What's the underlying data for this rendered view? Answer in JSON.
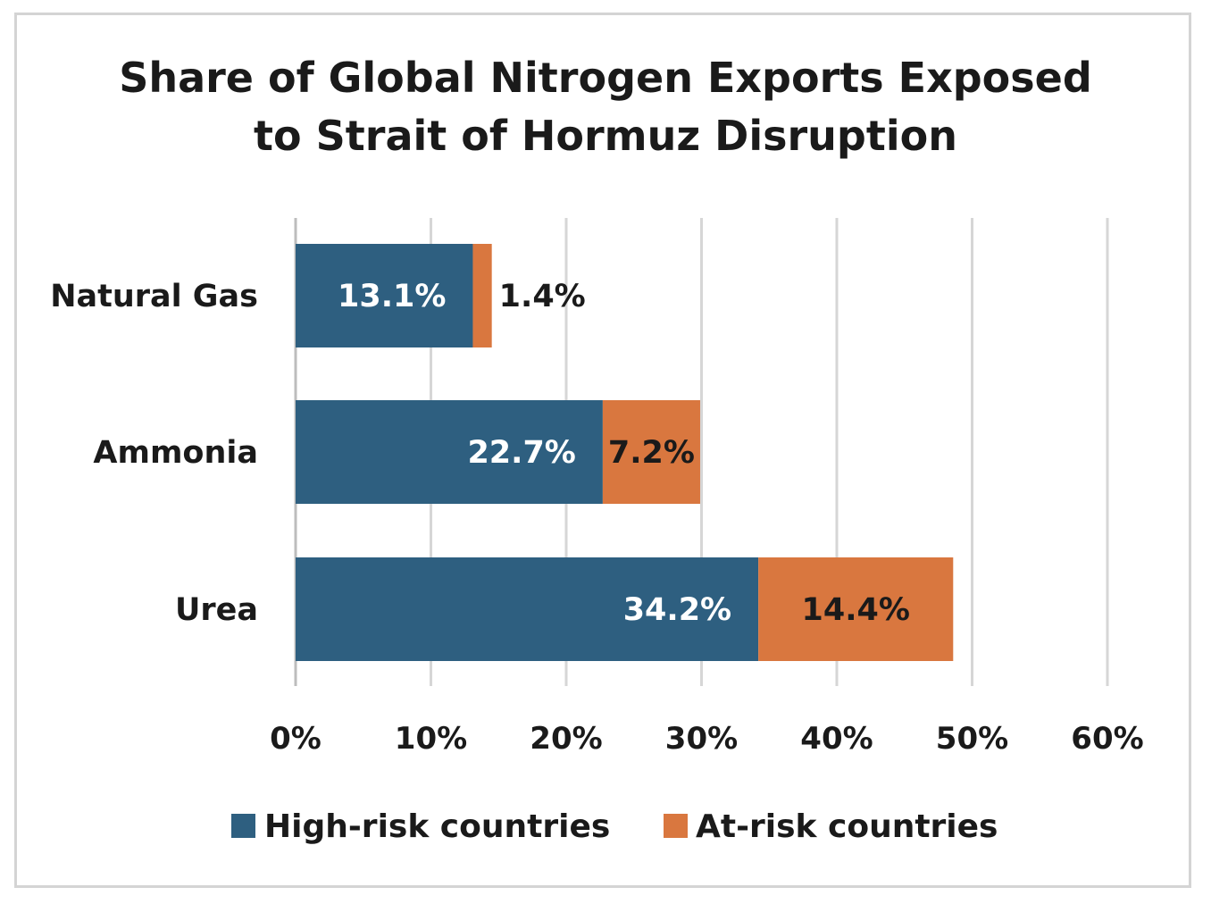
{
  "chart_data": {
    "type": "bar",
    "orientation": "horizontal",
    "stacked": true,
    "title_lines": [
      "Share of Global Nitrogen Exports Exposed",
      "to Strait of Hormuz Disruption"
    ],
    "categories": [
      "Natural Gas",
      "Ammonia",
      "Urea"
    ],
    "series": [
      {
        "name": "High-risk countries",
        "color": "#2e5f80",
        "values": [
          13.1,
          22.7,
          34.2
        ],
        "labels": [
          "13.1%",
          "22.7%",
          "34.2%"
        ],
        "label_color": "#ffffff"
      },
      {
        "name": "At-risk countries",
        "color": "#d9773f",
        "values": [
          1.4,
          7.2,
          14.4
        ],
        "labels": [
          "1.4%",
          "7.2%",
          "14.4%"
        ],
        "label_color": "#1a1a1a"
      }
    ],
    "xlim": [
      0,
      60
    ],
    "xticks": [
      0,
      10,
      20,
      30,
      40,
      50,
      60
    ],
    "xtick_labels": [
      "0%",
      "10%",
      "20%",
      "30%",
      "40%",
      "50%",
      "60%"
    ],
    "grid": "vertical",
    "legend_position": "bottom"
  }
}
